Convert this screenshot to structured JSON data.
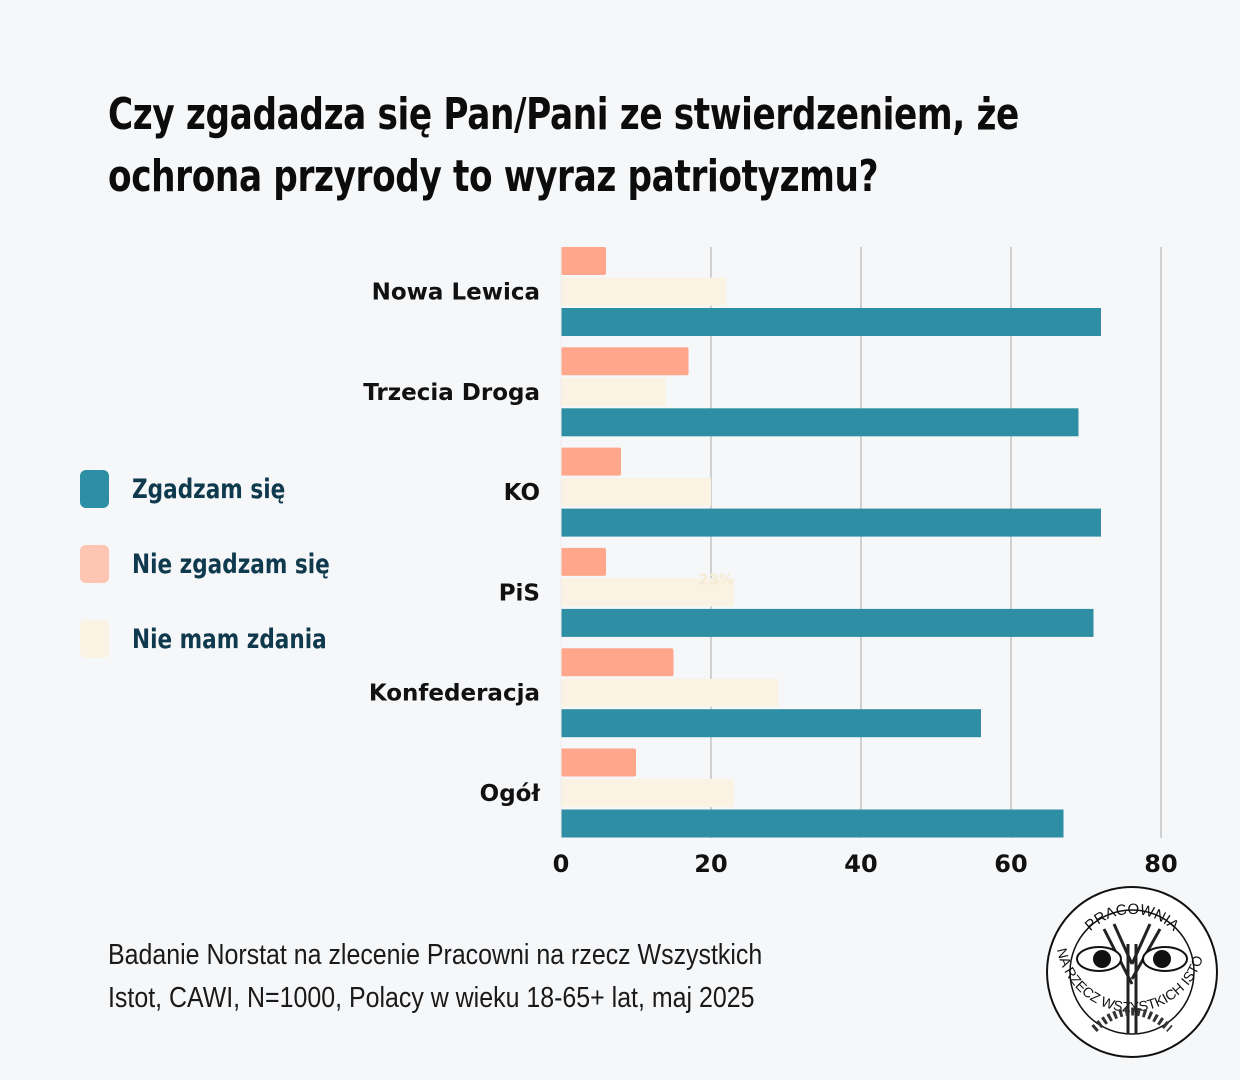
{
  "title_lines": [
    "Czy zgadadza się Pan/Pani ze stwierdzeniem, że",
    "ochrona przyrody to wyraz patriotyzmu?"
  ],
  "legend": [
    {
      "label": "Zgadzam się",
      "color": "#2e8ea3"
    },
    {
      "label": "Nie zgadzam się",
      "color": "#ffc5b3"
    },
    {
      "label": "Nie mam zdania",
      "color": "#faf2e2"
    }
  ],
  "source_lines": [
    "Badanie Norstat na zlecenie Pracowni na rzecz Wszystkich",
    "Istot, CAWI, N=1000, Polacy w wieku 18-65+ lat, maj 2025"
  ],
  "logo": {
    "top_text": "PRACOWNIA",
    "bottom_text": "NA RZECZ WSZYSTKICH ISTOT"
  },
  "chart_data": {
    "type": "bar",
    "orientation": "horizontal",
    "title": "Czy zgadadza się Pan/Pani ze stwierdzeniem, że ochrona przyrody to wyraz patriotyzmu?",
    "categories": [
      "Nowa Lewica",
      "Trzecia Droga",
      "KO",
      "PiS",
      "Konfederacja",
      "Ogół"
    ],
    "series": [
      {
        "name": "Nie zgadzam się",
        "color": "#ffa68b",
        "values": [
          6,
          17,
          8,
          6,
          15,
          10
        ]
      },
      {
        "name": "Nie mam zdania",
        "color": "#faf2e2",
        "values": [
          22,
          14,
          20,
          23,
          29,
          23
        ]
      },
      {
        "name": "Zgadzam się",
        "color": "#2e8ea3",
        "values": [
          72,
          69,
          72,
          71,
          56,
          67
        ]
      }
    ],
    "xlim": [
      0,
      80
    ],
    "xticks": [
      "0",
      "20",
      "40",
      "60",
      "80"
    ],
    "grid": true,
    "annotations": [
      {
        "text": "23%",
        "category": "PiS",
        "series": "Nie mam zdania"
      }
    ],
    "legend_position": "left"
  }
}
